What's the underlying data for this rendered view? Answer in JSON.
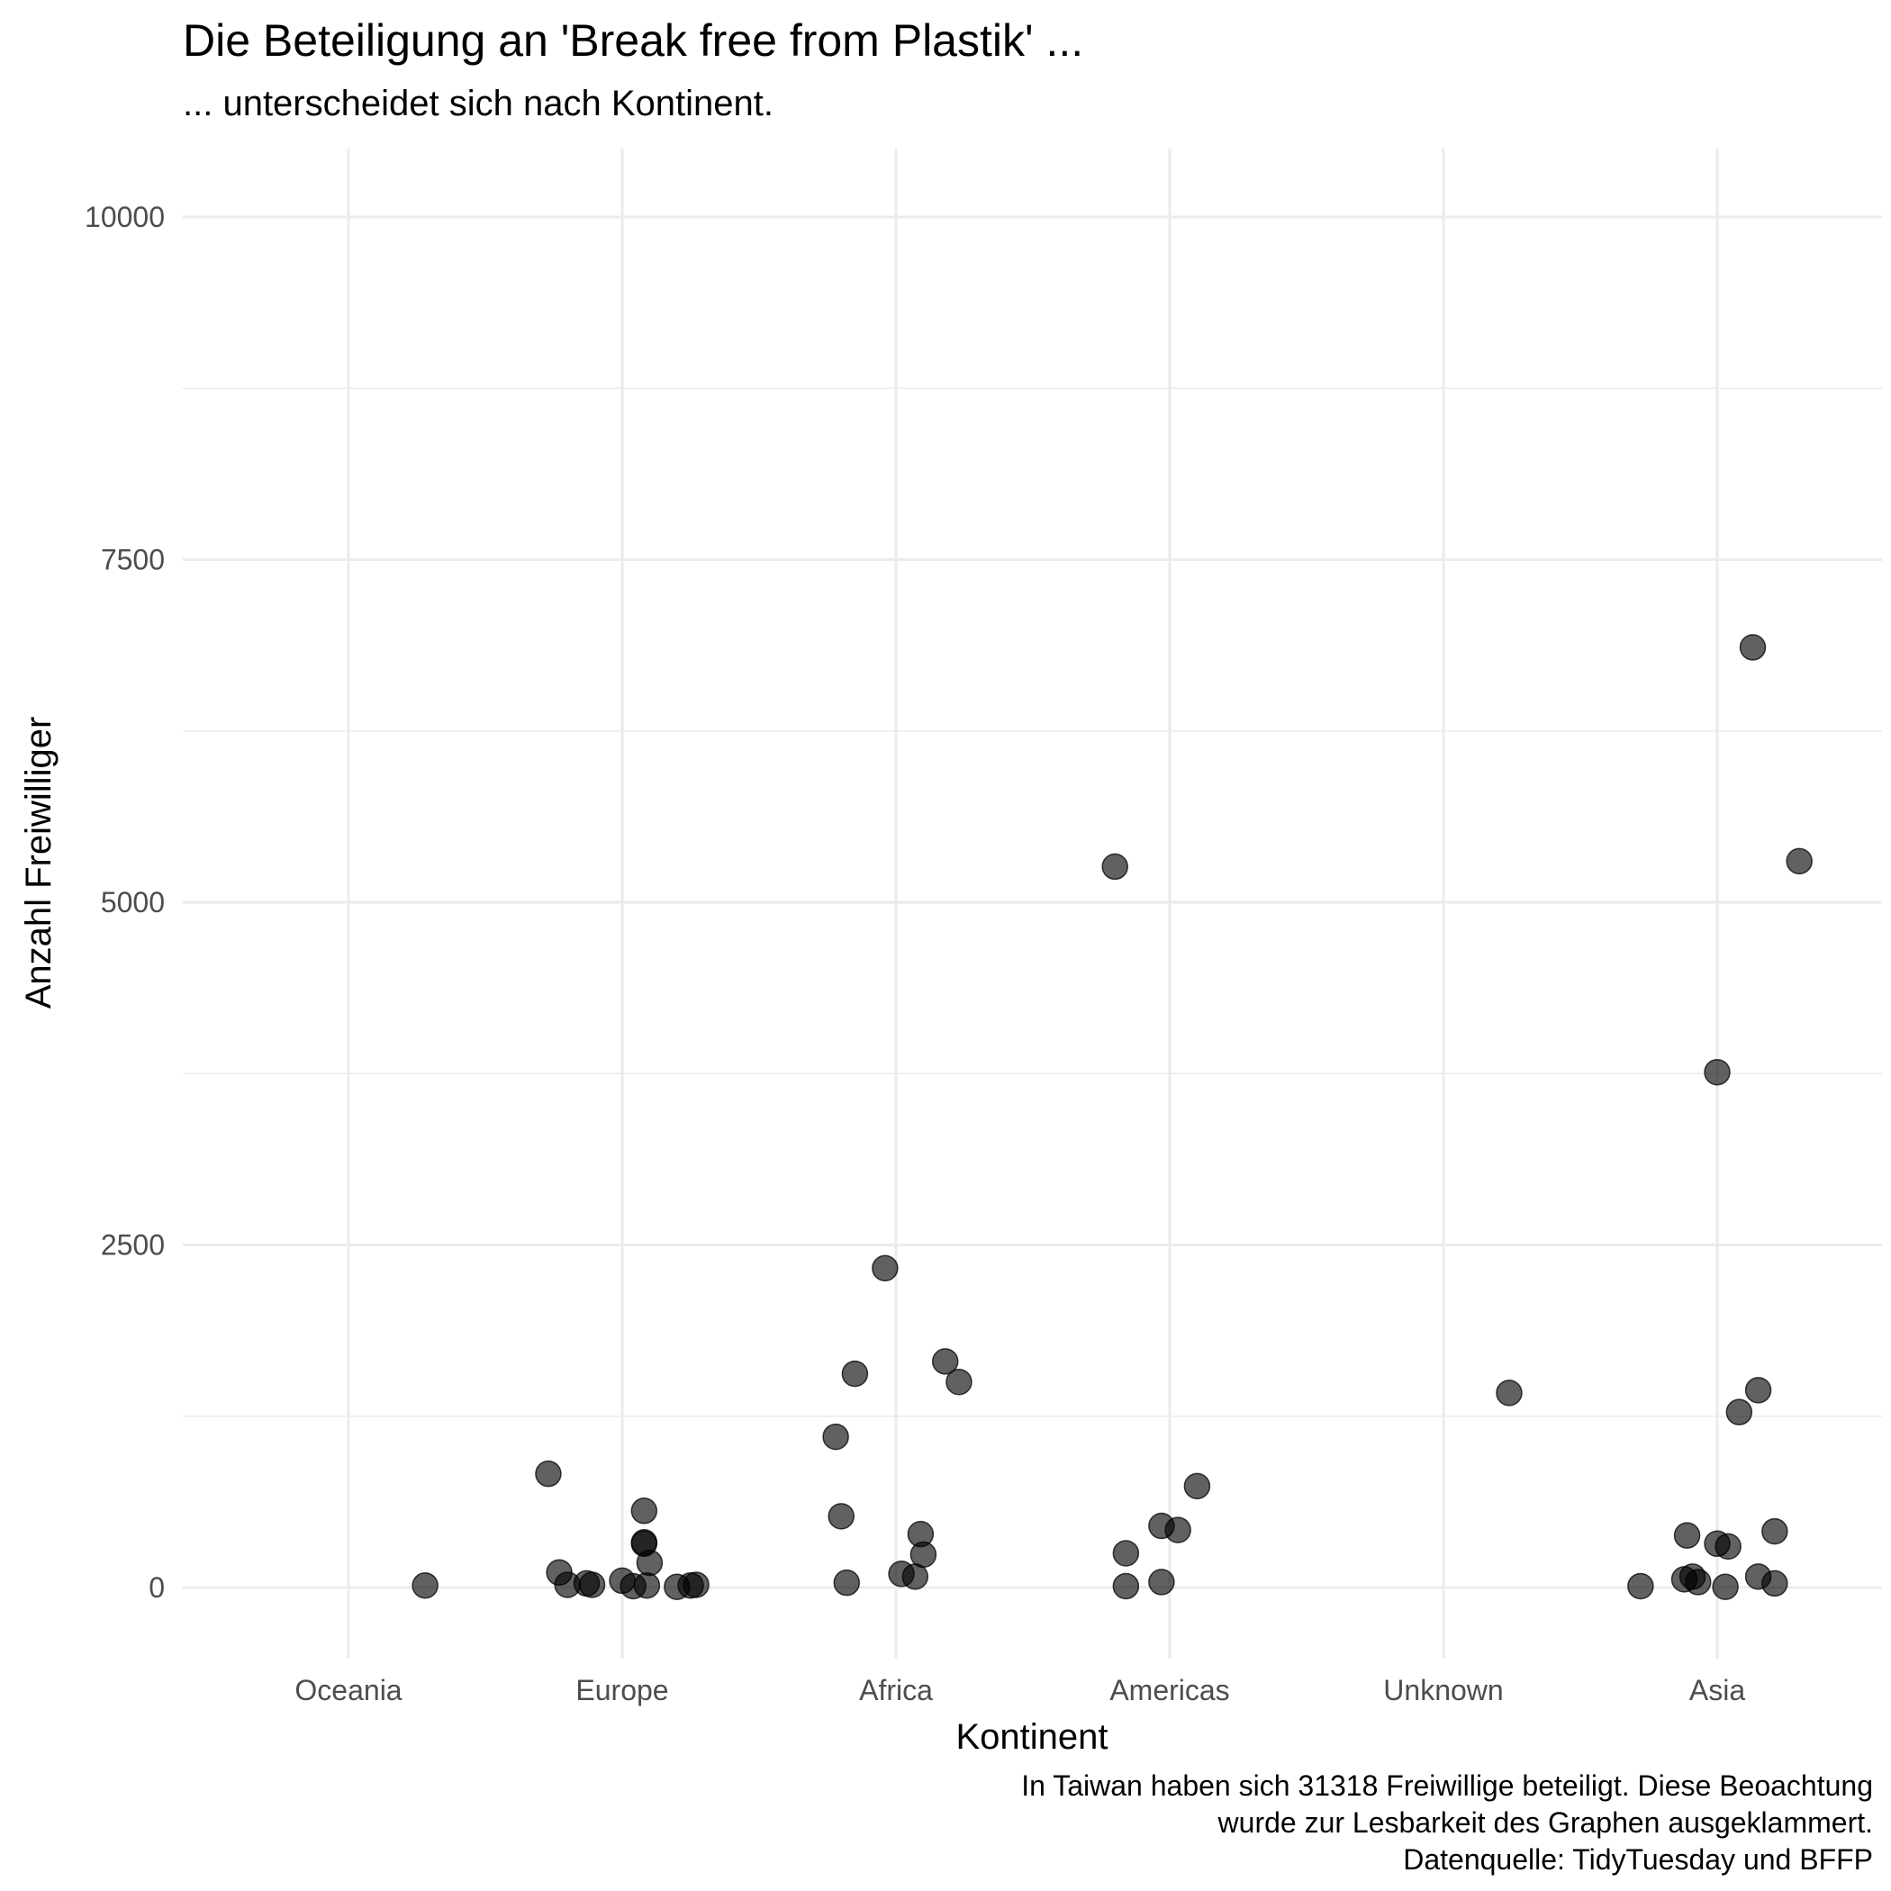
{
  "chart_data": {
    "type": "scatter",
    "title": "Die Beteiligung an 'Break free from Plastik' ...",
    "subtitle": "... unterscheidet sich nach Kontinent.",
    "xlabel": "Kontinent",
    "ylabel": "Anzahl Freiwilliger",
    "categories": [
      "Oceania",
      "Europe",
      "Africa",
      "Americas",
      "Unknown",
      "Asia"
    ],
    "ylim": [
      -500,
      10500
    ],
    "yticks": [
      0,
      2500,
      5000,
      7500,
      10000
    ],
    "ytick_labels": [
      "0",
      "2500",
      "5000",
      "7500",
      "10000"
    ],
    "grid": true,
    "points": [
      {
        "category": "Oceania",
        "jitter": 0.28,
        "y": 15
      },
      {
        "category": "Europe",
        "jitter": -0.27,
        "y": 830
      },
      {
        "category": "Europe",
        "jitter": -0.23,
        "y": 110
      },
      {
        "category": "Europe",
        "jitter": -0.2,
        "y": 20
      },
      {
        "category": "Europe",
        "jitter": -0.13,
        "y": 30
      },
      {
        "category": "Europe",
        "jitter": -0.11,
        "y": 20
      },
      {
        "category": "Europe",
        "jitter": 0.0,
        "y": 50
      },
      {
        "category": "Europe",
        "jitter": 0.04,
        "y": 10
      },
      {
        "category": "Europe",
        "jitter": 0.08,
        "y": 560
      },
      {
        "category": "Europe",
        "jitter": 0.08,
        "y": 330
      },
      {
        "category": "Europe",
        "jitter": 0.08,
        "y": 320
      },
      {
        "category": "Europe",
        "jitter": 0.1,
        "y": 180
      },
      {
        "category": "Europe",
        "jitter": 0.09,
        "y": 15
      },
      {
        "category": "Europe",
        "jitter": 0.2,
        "y": 5
      },
      {
        "category": "Europe",
        "jitter": 0.25,
        "y": 15
      },
      {
        "category": "Europe",
        "jitter": 0.27,
        "y": 20
      },
      {
        "category": "Africa",
        "jitter": -0.22,
        "y": 1100
      },
      {
        "category": "Africa",
        "jitter": -0.2,
        "y": 520
      },
      {
        "category": "Africa",
        "jitter": -0.18,
        "y": 35
      },
      {
        "category": "Africa",
        "jitter": -0.15,
        "y": 1560
      },
      {
        "category": "Africa",
        "jitter": -0.04,
        "y": 2330
      },
      {
        "category": "Africa",
        "jitter": 0.02,
        "y": 100
      },
      {
        "category": "Africa",
        "jitter": 0.07,
        "y": 80
      },
      {
        "category": "Africa",
        "jitter": 0.09,
        "y": 390
      },
      {
        "category": "Africa",
        "jitter": 0.1,
        "y": 240
      },
      {
        "category": "Africa",
        "jitter": 0.18,
        "y": 1650
      },
      {
        "category": "Africa",
        "jitter": 0.23,
        "y": 1500
      },
      {
        "category": "Americas",
        "jitter": -0.2,
        "y": 5260
      },
      {
        "category": "Americas",
        "jitter": -0.16,
        "y": 250
      },
      {
        "category": "Americas",
        "jitter": -0.16,
        "y": 10
      },
      {
        "category": "Americas",
        "jitter": -0.03,
        "y": 450
      },
      {
        "category": "Americas",
        "jitter": -0.03,
        "y": 40
      },
      {
        "category": "Americas",
        "jitter": 0.03,
        "y": 420
      },
      {
        "category": "Americas",
        "jitter": 0.1,
        "y": 740
      },
      {
        "category": "Unknown",
        "jitter": 0.24,
        "y": 1420
      },
      {
        "category": "Asia",
        "jitter": -0.28,
        "y": 10
      },
      {
        "category": "Asia",
        "jitter": -0.12,
        "y": 60
      },
      {
        "category": "Asia",
        "jitter": -0.11,
        "y": 380
      },
      {
        "category": "Asia",
        "jitter": -0.09,
        "y": 80
      },
      {
        "category": "Asia",
        "jitter": -0.07,
        "y": 40
      },
      {
        "category": "Asia",
        "jitter": 0.0,
        "y": 3760
      },
      {
        "category": "Asia",
        "jitter": 0.0,
        "y": 320
      },
      {
        "category": "Asia",
        "jitter": 0.03,
        "y": 5
      },
      {
        "category": "Asia",
        "jitter": 0.04,
        "y": 300
      },
      {
        "category": "Asia",
        "jitter": 0.08,
        "y": 1280
      },
      {
        "category": "Asia",
        "jitter": 0.13,
        "y": 6860
      },
      {
        "category": "Asia",
        "jitter": 0.15,
        "y": 1440
      },
      {
        "category": "Asia",
        "jitter": 0.15,
        "y": 80
      },
      {
        "category": "Asia",
        "jitter": 0.21,
        "y": 410
      },
      {
        "category": "Asia",
        "jitter": 0.21,
        "y": 30
      },
      {
        "category": "Asia",
        "jitter": 0.3,
        "y": 5300
      }
    ],
    "caption": [
      "In Taiwan haben sich 31318 Freiwillige beteiligt. Diese Beoachtung",
      "wurde zur Lesbarkeit des Graphen ausgeklammert.",
      "Datenquelle: TidyTuesday und BFFP"
    ]
  }
}
